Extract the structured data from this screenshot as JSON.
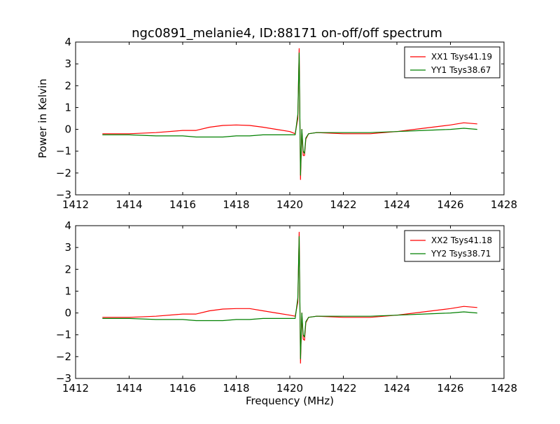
{
  "figure_title": "ngc0891_melanie4, ID:88171 on-off/off spectrum",
  "chart_data": [
    {
      "type": "line",
      "title": "ngc0891_melanie4, ID:88171 on-off/off spectrum",
      "xlabel": "",
      "ylabel": "Power in Kelvin",
      "xlim": [
        1412,
        1428
      ],
      "ylim": [
        -3,
        4
      ],
      "xticks": [
        "1412",
        "1414",
        "1416",
        "1418",
        "1420",
        "1422",
        "1424",
        "1426",
        "1428"
      ],
      "yticks": [
        "4",
        "3",
        "2",
        "1",
        "0",
        "−1",
        "−2",
        "−3"
      ],
      "legend_position": "upper right",
      "grid": false,
      "series": [
        {
          "name": "XX1 Tsys41.19",
          "color": "#ff0000",
          "x": [
            1413.0,
            1414.0,
            1415.0,
            1416.0,
            1416.5,
            1417.0,
            1417.5,
            1418.0,
            1418.5,
            1419.0,
            1419.5,
            1420.0,
            1420.2,
            1420.3,
            1420.35,
            1420.4,
            1420.45,
            1420.5,
            1420.55,
            1420.6,
            1420.7,
            1421.0,
            1422.0,
            1423.0,
            1424.0,
            1425.0,
            1426.0,
            1426.5,
            1427.0
          ],
          "y": [
            -0.2,
            -0.2,
            -0.15,
            -0.05,
            -0.05,
            0.1,
            0.18,
            0.2,
            0.18,
            0.1,
            0.0,
            -0.1,
            -0.2,
            0.5,
            3.7,
            -2.3,
            0.0,
            -1.2,
            -1.2,
            -0.45,
            -0.2,
            -0.15,
            -0.2,
            -0.2,
            -0.1,
            0.05,
            0.2,
            0.3,
            0.25
          ]
        },
        {
          "name": "YY1 Tsys38.67",
          "color": "#008000",
          "x": [
            1413.0,
            1414.0,
            1415.0,
            1416.0,
            1416.5,
            1417.0,
            1417.5,
            1418.0,
            1418.5,
            1419.0,
            1419.5,
            1420.0,
            1420.2,
            1420.3,
            1420.35,
            1420.4,
            1420.45,
            1420.5,
            1420.55,
            1420.6,
            1420.7,
            1421.0,
            1422.0,
            1423.0,
            1424.0,
            1425.0,
            1426.0,
            1426.5,
            1427.0
          ],
          "y": [
            -0.25,
            -0.25,
            -0.3,
            -0.3,
            -0.35,
            -0.35,
            -0.35,
            -0.3,
            -0.3,
            -0.25,
            -0.25,
            -0.25,
            -0.25,
            0.7,
            3.5,
            -2.1,
            0.0,
            -1.0,
            -1.1,
            -0.4,
            -0.2,
            -0.15,
            -0.15,
            -0.15,
            -0.1,
            -0.05,
            0.0,
            0.05,
            0.0
          ]
        }
      ]
    },
    {
      "type": "line",
      "title": "",
      "xlabel": "Frequency (MHz)",
      "ylabel": "",
      "xlim": [
        1412,
        1428
      ],
      "ylim": [
        -3,
        4
      ],
      "xticks": [
        "1412",
        "1414",
        "1416",
        "1418",
        "1420",
        "1422",
        "1424",
        "1426",
        "1428"
      ],
      "yticks": [
        "4",
        "3",
        "2",
        "1",
        "0",
        "−1",
        "−2",
        "−3"
      ],
      "legend_position": "upper right",
      "grid": false,
      "series": [
        {
          "name": "XX2 Tsys41.18",
          "color": "#ff0000",
          "x": [
            1413.0,
            1414.0,
            1415.0,
            1416.0,
            1416.5,
            1417.0,
            1417.5,
            1418.0,
            1418.5,
            1419.0,
            1419.5,
            1420.0,
            1420.2,
            1420.3,
            1420.35,
            1420.4,
            1420.45,
            1420.5,
            1420.55,
            1420.6,
            1420.7,
            1421.0,
            1422.0,
            1423.0,
            1424.0,
            1425.0,
            1426.0,
            1426.5,
            1427.0
          ],
          "y": [
            -0.2,
            -0.2,
            -0.15,
            -0.05,
            -0.05,
            0.1,
            0.18,
            0.2,
            0.2,
            0.1,
            0.0,
            -0.1,
            -0.15,
            0.5,
            3.7,
            -2.3,
            0.0,
            -1.2,
            -1.25,
            -0.45,
            -0.2,
            -0.15,
            -0.2,
            -0.2,
            -0.1,
            0.05,
            0.2,
            0.3,
            0.25
          ]
        },
        {
          "name": "YY2 Tsys38.71",
          "color": "#008000",
          "x": [
            1413.0,
            1414.0,
            1415.0,
            1416.0,
            1416.5,
            1417.0,
            1417.5,
            1418.0,
            1418.5,
            1419.0,
            1419.5,
            1420.0,
            1420.2,
            1420.3,
            1420.35,
            1420.4,
            1420.45,
            1420.5,
            1420.55,
            1420.6,
            1420.7,
            1421.0,
            1422.0,
            1423.0,
            1424.0,
            1425.0,
            1426.0,
            1426.5,
            1427.0
          ],
          "y": [
            -0.25,
            -0.25,
            -0.3,
            -0.3,
            -0.35,
            -0.35,
            -0.35,
            -0.3,
            -0.3,
            -0.25,
            -0.25,
            -0.25,
            -0.25,
            0.7,
            3.5,
            -2.1,
            0.0,
            -1.0,
            -1.1,
            -0.4,
            -0.2,
            -0.15,
            -0.15,
            -0.15,
            -0.1,
            -0.05,
            0.0,
            0.05,
            0.0
          ]
        }
      ]
    }
  ]
}
